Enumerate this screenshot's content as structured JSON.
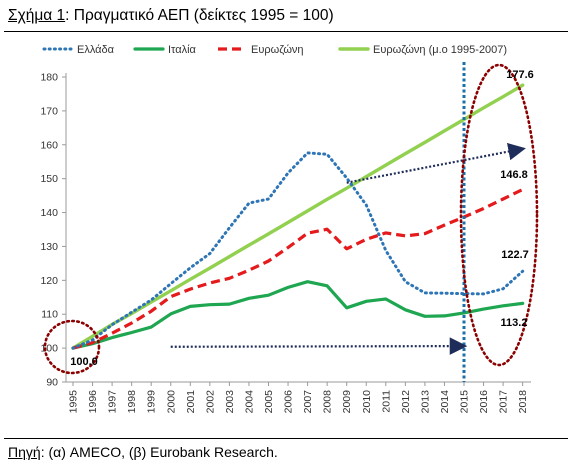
{
  "figure": {
    "label": "Σχήμα 1",
    "title": "Πραγματικό ΑΕΠ (δείκτες 1995 = 100)",
    "source_label": "Πηγή",
    "source_text": "(α) AMECO, (β) Eurobank Research."
  },
  "colors": {
    "greece": "#2e75b6",
    "italy": "#1ea650",
    "eurozone": "#e41a1c",
    "eurozone_trend": "#92d050",
    "arrows": "#1f2d5a",
    "vline": "#1b6fa8",
    "ellipses": "#8b0000"
  },
  "chart_data": {
    "type": "line",
    "title": "Πραγματικό ΑΕΠ (δείκτες 1995 = 100)",
    "x": [
      "1995",
      "1996",
      "1997",
      "1998",
      "1999",
      "2000",
      "2001",
      "2002",
      "2003",
      "2004",
      "2005",
      "2006",
      "2007",
      "2008",
      "2009",
      "2010",
      "2011",
      "2012",
      "2013",
      "2014",
      "2015",
      "2016",
      "2017",
      "2018"
    ],
    "ylim": [
      90,
      180
    ],
    "yticks": [
      90,
      100,
      110,
      120,
      130,
      140,
      150,
      160,
      170,
      180
    ],
    "grid": false,
    "legend_position": "top",
    "series": [
      {
        "name": "Ελλάδα",
        "style": "dotted",
        "values": [
          100,
          102.4,
          106.9,
          110.6,
          114.2,
          119,
          123.7,
          127.9,
          135.5,
          142.8,
          144,
          151.7,
          157.6,
          157.2,
          150.2,
          142.2,
          128.8,
          119.6,
          116.3,
          116.2,
          116.1,
          116,
          117.5,
          122.7
        ]
      },
      {
        "name": "Ιταλία",
        "style": "solid",
        "values": [
          100,
          101.3,
          103.1,
          104.6,
          106.2,
          110.1,
          112.3,
          112.8,
          113,
          114.7,
          115.6,
          117.9,
          119.6,
          118.4,
          111.9,
          113.8,
          114.5,
          111.3,
          109.4,
          109.5,
          110.4,
          111.5,
          112.5,
          113.2
        ]
      },
      {
        "name": "Ευρωζώνη",
        "style": "dashed",
        "values": [
          100,
          101.6,
          104.4,
          107.4,
          110.9,
          115.2,
          117.4,
          119.2,
          120.6,
          123,
          125.7,
          129.7,
          133.9,
          135.1,
          129.3,
          132.1,
          134,
          133.1,
          133.8,
          136.3,
          138.7,
          141.2,
          144,
          146.8
        ]
      },
      {
        "name": "Ευρωζώνη (μ.ο 1995-2007)",
        "style": "solid-thick",
        "values": [
          100,
          103.5,
          107,
          110.2,
          113.6,
          116.9,
          120.3,
          123.6,
          127,
          130.4,
          133.7,
          137.1,
          140.5,
          143.9,
          147.2,
          150.6,
          154,
          157.4,
          160.7,
          164.1,
          167.5,
          170.9,
          174.2,
          177.6
        ]
      }
    ],
    "annotations": [
      {
        "text": "177.6",
        "series": "Ευρωζώνη (μ.ο 1995-2007)",
        "x": "2018"
      },
      {
        "text": "146.8",
        "series": "Ευρωζώνη",
        "x": "2018"
      },
      {
        "text": "122.7",
        "series": "Ελλάδα",
        "x": "2018"
      },
      {
        "text": "113.2",
        "series": "Ιταλία",
        "x": "2018"
      },
      {
        "text": "100.0",
        "series": "all",
        "x": "1995"
      }
    ],
    "reference_line_x": "2015",
    "arrows": [
      {
        "from": [
          "2009",
          148.8
        ],
        "to": [
          "2018",
          158.8
        ]
      },
      {
        "from": [
          "2000",
          100.4
        ],
        "to": [
          "2015",
          100.6
        ]
      }
    ]
  }
}
